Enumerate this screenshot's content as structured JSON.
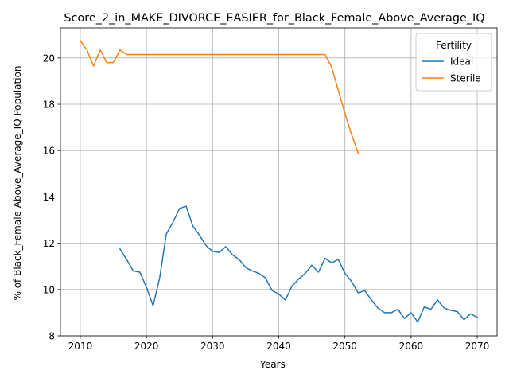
{
  "chart_data": {
    "type": "line",
    "title": "Score_2_in_MAKE_DIVORCE_EASIER_for_Black_Female_Above_Average_IQ",
    "xlabel": "Years",
    "ylabel": "% of Black_Female Above_Average_IQ Population",
    "xlim": [
      2007,
      2073
    ],
    "ylim": [
      8,
      21.3
    ],
    "xticks": [
      2010,
      2020,
      2030,
      2040,
      2050,
      2060,
      2070
    ],
    "yticks": [
      8,
      10,
      12,
      14,
      16,
      18,
      20
    ],
    "grid": true,
    "legend": {
      "title": "Fertility",
      "position": "top-right"
    },
    "series": [
      {
        "name": "Ideal",
        "color": "#1f77b4",
        "x": [
          2016,
          2017,
          2018,
          2019,
          2020,
          2021,
          2022,
          2023,
          2024,
          2025,
          2026,
          2027,
          2028,
          2029,
          2030,
          2031,
          2032,
          2033,
          2034,
          2035,
          2036,
          2037,
          2038,
          2039,
          2040,
          2041,
          2042,
          2043,
          2044,
          2045,
          2046,
          2047,
          2048,
          2049,
          2050,
          2051,
          2052,
          2053,
          2054,
          2055,
          2056,
          2057,
          2058,
          2059,
          2060,
          2061,
          2062,
          2063,
          2064,
          2065,
          2066,
          2067,
          2068,
          2069,
          2070
        ],
        "y": [
          11.75,
          11.3,
          10.8,
          10.75,
          10.1,
          9.3,
          10.5,
          12.4,
          12.9,
          13.5,
          13.6,
          12.75,
          12.35,
          11.9,
          11.65,
          11.6,
          11.85,
          11.5,
          11.3,
          10.95,
          10.8,
          10.7,
          10.5,
          9.95,
          9.8,
          9.55,
          10.15,
          10.45,
          10.7,
          11.05,
          10.75,
          11.35,
          11.15,
          11.3,
          10.7,
          10.35,
          9.85,
          9.95,
          9.55,
          9.2,
          9.0,
          9.0,
          9.15,
          8.75,
          9.0,
          8.6,
          9.25,
          9.15,
          9.55,
          9.2,
          9.1,
          9.05,
          8.7,
          8.95,
          8.8
        ]
      },
      {
        "name": "Sterile",
        "color": "#ff7f0e",
        "x": [
          2010,
          2011,
          2012,
          2013,
          2014,
          2015,
          2016,
          2017,
          2018,
          2019,
          2020,
          2021,
          2022,
          2023,
          2024,
          2025,
          2026,
          2027,
          2028,
          2029,
          2030,
          2031,
          2032,
          2033,
          2034,
          2035,
          2036,
          2037,
          2038,
          2039,
          2040,
          2041,
          2042,
          2043,
          2044,
          2045,
          2046,
          2047,
          2048,
          2049,
          2050,
          2051,
          2052
        ],
        "y": [
          20.75,
          20.35,
          19.65,
          20.35,
          19.8,
          19.8,
          20.35,
          20.15,
          20.15,
          20.15,
          20.15,
          20.15,
          20.15,
          20.15,
          20.15,
          20.15,
          20.15,
          20.15,
          20.15,
          20.15,
          20.15,
          20.15,
          20.15,
          20.15,
          20.15,
          20.15,
          20.15,
          20.15,
          20.15,
          20.15,
          20.15,
          20.15,
          20.15,
          20.15,
          20.15,
          20.15,
          20.15,
          20.15,
          19.6,
          18.6,
          17.6,
          16.7,
          15.9
        ]
      }
    ]
  }
}
